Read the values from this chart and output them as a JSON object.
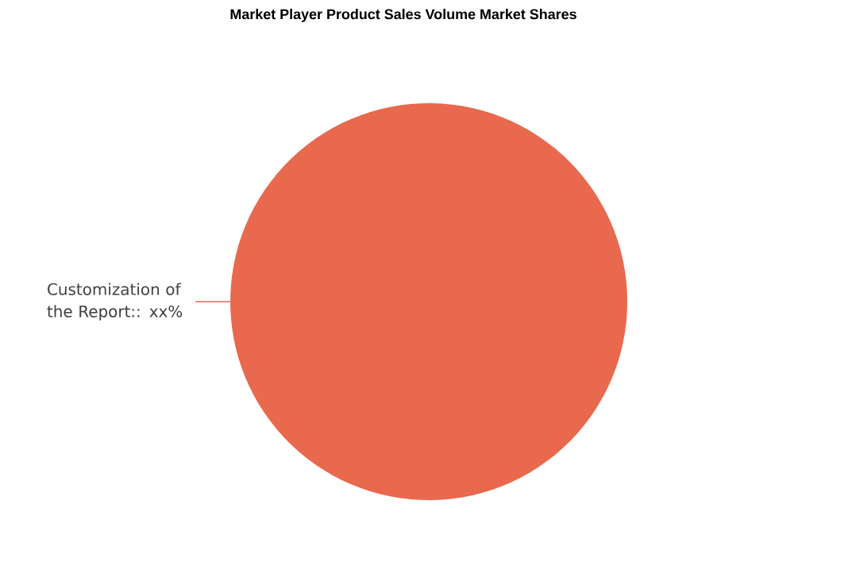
{
  "chart_data": {
    "type": "pie",
    "title": "Market Player Product Sales Volume Market Shares",
    "categories": [
      "Customization of the Report:: xx%"
    ],
    "values": [
      100
    ],
    "colors": [
      "#e8694e"
    ]
  }
}
